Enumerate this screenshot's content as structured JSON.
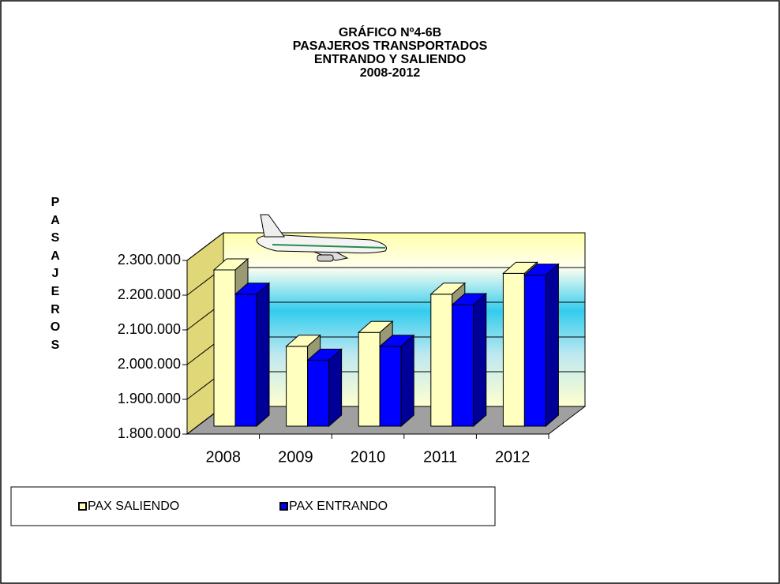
{
  "chart_data": {
    "type": "bar3d",
    "title": [
      "GRÁFICO Nº4-6B",
      "PASAJEROS TRANSPORTADOS",
      "ENTRANDO Y SALIENDO",
      "2008-2012"
    ],
    "y_label": "PASAJEROS",
    "categories": [
      "2008",
      "2009",
      "2010",
      "2011",
      "2012"
    ],
    "series": [
      {
        "name": "PAX SALIENDO",
        "color": "#ffffc0",
        "values": [
          2250000,
          2030000,
          2070000,
          2180000,
          2240000
        ]
      },
      {
        "name": "PAX ENTRANDO",
        "color": "#0000ff",
        "values": [
          2180000,
          1990000,
          2030000,
          2150000,
          2235000
        ]
      }
    ],
    "ylim": [
      1800000,
      2300000
    ],
    "yticks": [
      {
        "value": 1800000,
        "label": "1.800.000"
      },
      {
        "value": 1900000,
        "label": "1.900.000"
      },
      {
        "value": 2000000,
        "label": "2.000.000"
      },
      {
        "value": 2100000,
        "label": "2.100.000"
      },
      {
        "value": 2200000,
        "label": "2.200.000"
      },
      {
        "value": 2300000,
        "label": "2.300.000"
      }
    ],
    "grid": true
  }
}
